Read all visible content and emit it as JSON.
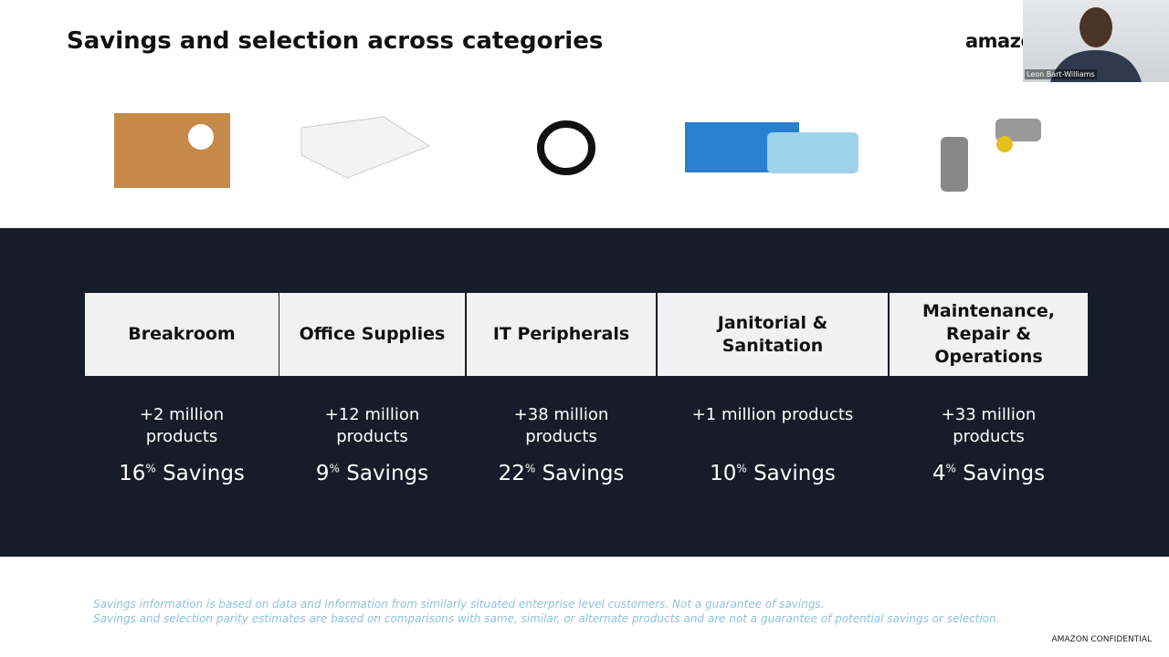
{
  "header": {
    "title": "Savings and selection across categories",
    "logo": "amazon"
  },
  "video": {
    "name": "Leon Bart-Williams"
  },
  "categories": [
    {
      "name": "Breakroom",
      "products": "+2 million products",
      "savings": "16",
      "unit": "%",
      "label": "Savings"
    },
    {
      "name": "Office Supplies",
      "products": "+12 million products",
      "savings": "9",
      "unit": "%",
      "label": "Savings"
    },
    {
      "name": "IT Peripherals",
      "products": "+38 million products",
      "savings": "22",
      "unit": "%",
      "label": "Savings"
    },
    {
      "name": "Janitorial & Sanitation",
      "products": "+1 million products",
      "savings": "10",
      "unit": "%",
      "label": "Savings"
    },
    {
      "name": "Maintenance, Repair & Operations",
      "products": "+33 million products",
      "savings": "4",
      "unit": "%",
      "label": "Savings"
    }
  ],
  "footnotes": [
    "Savings information is based on data and information from similarly situated enterprise level customers. Not a guarantee of savings.",
    "Savings and selection parity estimates are based on comparisons with same, similar, or alternate products and are not a guarantee of potential savings or selection."
  ],
  "confidential": "AMAZON CONFIDENTIAL"
}
